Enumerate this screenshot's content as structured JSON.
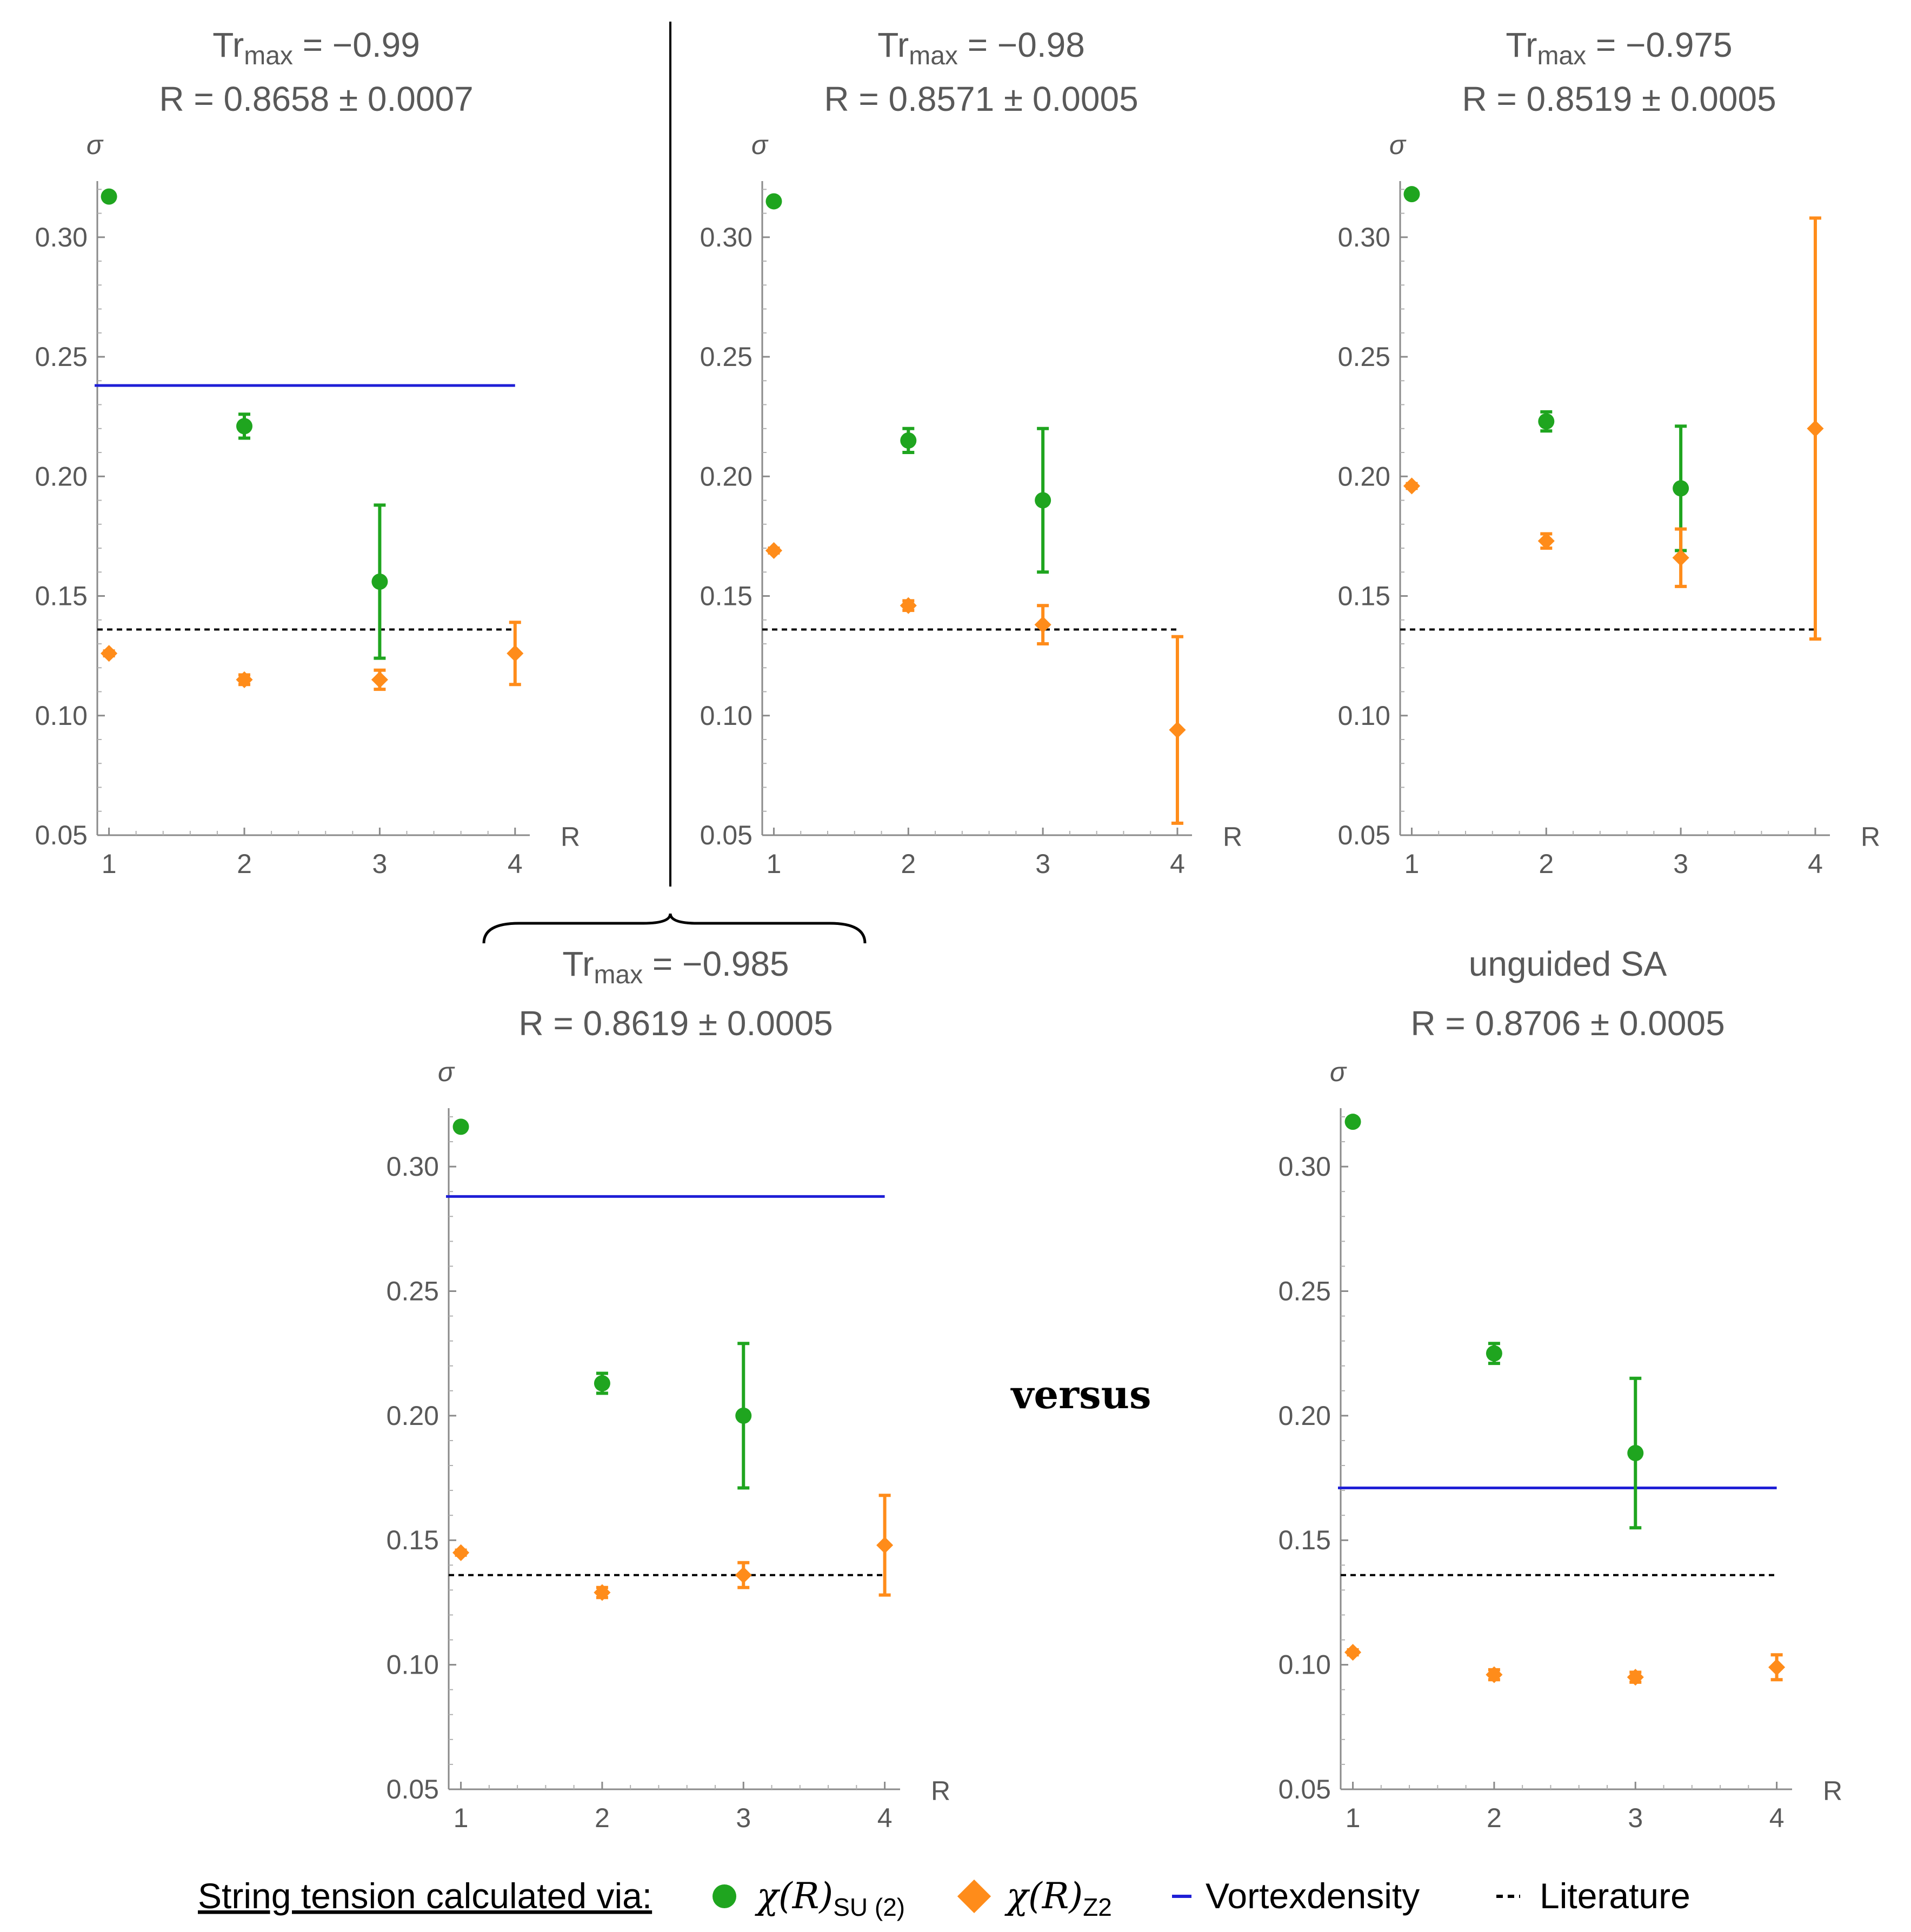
{
  "colors": {
    "su2": "#1fa51f",
    "z2": "#ff8c1a",
    "vortex": "#1f1fd6",
    "literature": "#000000",
    "text": "#595959"
  },
  "versus_label": "versus",
  "legend": {
    "heading": "String tension calculated via:",
    "su2_label": "χ(R)",
    "su2_sub": "SU (2)",
    "z2_label": "χ(R)",
    "z2_sub": "Z2",
    "vortex_label": "Vortexdensity",
    "literature_label": "Literature"
  },
  "chart_data": [
    {
      "type": "scatter",
      "title_tr_base": "Tr",
      "title_tr_sub": "max",
      "title_tr_value": " = −0.99",
      "title_r": "R = 0.8658 ± 0.0007",
      "xlabel": "R",
      "ylabel": "σ",
      "xlim": [
        1,
        4
      ],
      "ylim": [
        0.05,
        0.32
      ],
      "x_ticks": [
        "1",
        "2",
        "3",
        "4"
      ],
      "y_ticks": [
        "0.05",
        "0.10",
        "0.15",
        "0.20",
        "0.25",
        "0.30"
      ],
      "vortex_line": 0.238,
      "literature_line": 0.136,
      "series": [
        {
          "name": "χ(R)SU(2)",
          "kind": "su2",
          "x": [
            1,
            2,
            3
          ],
          "y": [
            0.317,
            0.221,
            0.156
          ],
          "err": [
            0.001,
            0.005,
            0.032
          ]
        },
        {
          "name": "χ(R)Z2",
          "kind": "z2",
          "x": [
            1,
            2,
            3,
            4
          ],
          "y": [
            0.126,
            0.115,
            0.115,
            0.126
          ],
          "err": [
            0.001,
            0.002,
            0.004,
            0.013
          ]
        }
      ]
    },
    {
      "type": "scatter",
      "title_tr_base": "Tr",
      "title_tr_sub": "max",
      "title_tr_value": " = −0.98",
      "title_r": "R = 0.8571 ± 0.0005",
      "xlabel": "R",
      "ylabel": "σ",
      "xlim": [
        1,
        4
      ],
      "ylim": [
        0.05,
        0.32
      ],
      "x_ticks": [
        "1",
        "2",
        "3",
        "4"
      ],
      "y_ticks": [
        "0.05",
        "0.10",
        "0.15",
        "0.20",
        "0.25",
        "0.30"
      ],
      "vortex_line": null,
      "literature_line": 0.136,
      "series": [
        {
          "name": "χ(R)SU(2)",
          "kind": "su2",
          "x": [
            1,
            2,
            3
          ],
          "y": [
            0.315,
            0.215,
            0.19
          ],
          "err": [
            0.001,
            0.005,
            0.03
          ]
        },
        {
          "name": "χ(R)Z2",
          "kind": "z2",
          "x": [
            1,
            2,
            3,
            4
          ],
          "y": [
            0.169,
            0.146,
            0.138,
            0.094
          ],
          "err": [
            0.001,
            0.002,
            0.008,
            0.039
          ]
        }
      ]
    },
    {
      "type": "scatter",
      "title_tr_base": "Tr",
      "title_tr_sub": "max",
      "title_tr_value": " = −0.975",
      "title_r": "R = 0.8519 ± 0.0005",
      "xlabel": "R",
      "ylabel": "σ",
      "xlim": [
        1,
        4
      ],
      "ylim": [
        0.05,
        0.32
      ],
      "x_ticks": [
        "1",
        "2",
        "3",
        "4"
      ],
      "y_ticks": [
        "0.05",
        "0.10",
        "0.15",
        "0.20",
        "0.25",
        "0.30"
      ],
      "vortex_line": null,
      "literature_line": 0.136,
      "series": [
        {
          "name": "χ(R)SU(2)",
          "kind": "su2",
          "x": [
            1,
            2,
            3
          ],
          "y": [
            0.318,
            0.223,
            0.195
          ],
          "err": [
            0.001,
            0.004,
            0.026
          ]
        },
        {
          "name": "χ(R)Z2",
          "kind": "z2",
          "x": [
            1,
            2,
            3,
            4
          ],
          "y": [
            0.196,
            0.173,
            0.166,
            0.22
          ],
          "err": [
            0.001,
            0.003,
            0.012,
            0.088
          ]
        }
      ]
    },
    {
      "type": "scatter",
      "title_tr_base": "Tr",
      "title_tr_sub": "max",
      "title_tr_value": " = −0.985",
      "title_r": "R = 0.8619 ± 0.0005",
      "xlabel": "R",
      "ylabel": "σ",
      "xlim": [
        1,
        4
      ],
      "ylim": [
        0.05,
        0.32
      ],
      "x_ticks": [
        "1",
        "2",
        "3",
        "4"
      ],
      "y_ticks": [
        "0.05",
        "0.10",
        "0.15",
        "0.20",
        "0.25",
        "0.30"
      ],
      "vortex_line": 0.288,
      "literature_line": 0.136,
      "series": [
        {
          "name": "χ(R)SU(2)",
          "kind": "su2",
          "x": [
            1,
            2,
            3
          ],
          "y": [
            0.316,
            0.213,
            0.2
          ],
          "err": [
            0.001,
            0.004,
            0.029
          ]
        },
        {
          "name": "χ(R)Z2",
          "kind": "z2",
          "x": [
            1,
            2,
            3,
            4
          ],
          "y": [
            0.145,
            0.129,
            0.136,
            0.148
          ],
          "err": [
            0.001,
            0.002,
            0.005,
            0.02
          ]
        }
      ]
    },
    {
      "type": "scatter",
      "title_text": "unguided SA",
      "title_r": "R = 0.8706 ± 0.0005",
      "xlabel": "R",
      "ylabel": "σ",
      "xlim": [
        1,
        4
      ],
      "ylim": [
        0.05,
        0.32
      ],
      "x_ticks": [
        "1",
        "2",
        "3",
        "4"
      ],
      "y_ticks": [
        "0.05",
        "0.10",
        "0.15",
        "0.20",
        "0.25",
        "0.30"
      ],
      "vortex_line": 0.171,
      "literature_line": 0.136,
      "series": [
        {
          "name": "χ(R)SU(2)",
          "kind": "su2",
          "x": [
            1,
            2,
            3
          ],
          "y": [
            0.318,
            0.225,
            0.185
          ],
          "err": [
            0.001,
            0.004,
            0.03
          ]
        },
        {
          "name": "χ(R)Z2",
          "kind": "z2",
          "x": [
            1,
            2,
            3,
            4
          ],
          "y": [
            0.105,
            0.096,
            0.095,
            0.099
          ],
          "err": [
            0.001,
            0.002,
            0.002,
            0.005
          ]
        }
      ]
    }
  ]
}
